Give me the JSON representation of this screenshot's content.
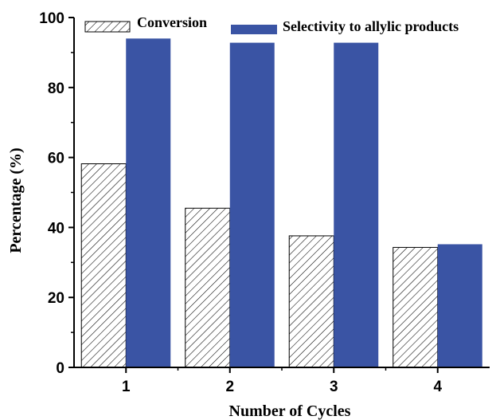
{
  "chart_data": {
    "type": "bar",
    "categories": [
      "1",
      "2",
      "3",
      "4"
    ],
    "series": [
      {
        "name": "Conversion",
        "values": [
          58.2,
          45.5,
          37.6,
          34.3
        ],
        "color": "#ffffff",
        "pattern": "hatched"
      },
      {
        "name": "Selectivity to allylic products",
        "values": [
          94.0,
          92.8,
          92.8,
          35.2
        ],
        "color": "#3a54a4",
        "pattern": "solid"
      }
    ],
    "title": "",
    "xlabel": "Number of Cycles",
    "ylabel": "Percentage (%)",
    "ylim": [
      0,
      100
    ],
    "yticks": [
      "0",
      "20",
      "40",
      "60",
      "80",
      "100"
    ],
    "legend_position": "top",
    "grid": false
  }
}
